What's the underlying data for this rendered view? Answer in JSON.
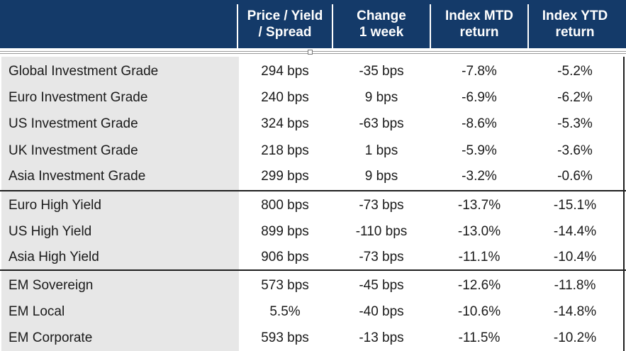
{
  "table": {
    "header": {
      "col_price": "Price / Yield\n/ Spread",
      "col_change": "Change\n1 week",
      "col_mtd": "Index MTD\nreturn",
      "col_ytd": "Index YTD\nreturn"
    },
    "rows": [
      {
        "name": "Global Investment Grade",
        "price": "294 bps",
        "change": "-35 bps",
        "mtd": "-7.8%",
        "ytd": "-5.2%"
      },
      {
        "name": "Euro Investment Grade",
        "price": "240 bps",
        "change": "9 bps",
        "mtd": "-6.9%",
        "ytd": "-6.2%"
      },
      {
        "name": "US Investment Grade",
        "price": "324 bps",
        "change": "-63 bps",
        "mtd": "-8.6%",
        "ytd": "-5.3%"
      },
      {
        "name": "UK Investment Grade",
        "price": "218 bps",
        "change": "1 bps",
        "mtd": "-5.9%",
        "ytd": "-3.6%"
      },
      {
        "name": "Asia Investment Grade",
        "price": "299 bps",
        "change": "9 bps",
        "mtd": "-3.2%",
        "ytd": "-0.6%"
      },
      {
        "name": "Euro High Yield",
        "price": "800 bps",
        "change": "-73 bps",
        "mtd": "-13.7%",
        "ytd": "-15.1%"
      },
      {
        "name": "US High Yield",
        "price": "899 bps",
        "change": "-110 bps",
        "mtd": "-13.0%",
        "ytd": "-14.4%"
      },
      {
        "name": "Asia High Yield",
        "price": "906 bps",
        "change": "-73 bps",
        "mtd": "-11.1%",
        "ytd": "-10.4%"
      },
      {
        "name": "EM Sovereign",
        "price": "573 bps",
        "change": "-45 bps",
        "mtd": "-12.6%",
        "ytd": "-11.8%"
      },
      {
        "name": "EM Local",
        "price": "5.5%",
        "change": "-40 bps",
        "mtd": "-10.6%",
        "ytd": "-14.8%"
      },
      {
        "name": "EM Corporate",
        "price": "593 bps",
        "change": "-13 bps",
        "mtd": "-11.5%",
        "ytd": "-10.2%"
      }
    ]
  },
  "colors": {
    "header_bg": "#143a69",
    "header_text": "#ffffff",
    "label_band": "#e7e7e7",
    "separator": "#1e1e1e"
  }
}
